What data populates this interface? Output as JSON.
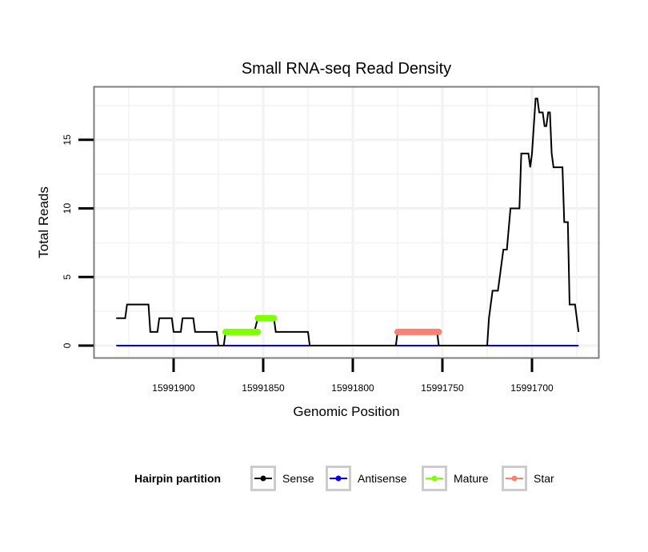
{
  "chart_data": {
    "type": "line",
    "title": "Small RNA-seq Read Density",
    "xlabel": "Genomic Position",
    "ylabel": "Total Reads",
    "x_reversed": true,
    "xlim": [
      15991932,
      15991672
    ],
    "ylim": [
      -0.8,
      18.5
    ],
    "xticks": [
      15991900,
      15991850,
      15991800,
      15991750,
      15991700
    ],
    "xtick_labels": [
      "15991900",
      "15991850",
      "15991800",
      "15991750",
      "15991700"
    ],
    "yticks": [
      0,
      5,
      10,
      15
    ],
    "ytick_labels": [
      "0",
      "5",
      "10",
      "15"
    ],
    "grid": true,
    "legend": {
      "title": "Hairpin partition",
      "position": "bottom",
      "entries": [
        {
          "label": "Sense",
          "color": "#000000"
        },
        {
          "label": "Antisense",
          "color": "#0000FF"
        },
        {
          "label": "Mature",
          "color": "#7FFF00"
        },
        {
          "label": "Star",
          "color": "#FA8072"
        }
      ]
    },
    "series": [
      {
        "name": "Sense",
        "color": "#000000",
        "points": [
          [
            15991932,
            2
          ],
          [
            15991927,
            2
          ],
          [
            15991926,
            3
          ],
          [
            15991914,
            3
          ],
          [
            15991913,
            1
          ],
          [
            15991909,
            1
          ],
          [
            15991908,
            2
          ],
          [
            15991901,
            2
          ],
          [
            15991900,
            1
          ],
          [
            15991896,
            1
          ],
          [
            15991895,
            2
          ],
          [
            15991889,
            2
          ],
          [
            15991888,
            1
          ],
          [
            15991876,
            1
          ],
          [
            15991875,
            0
          ],
          [
            15991872,
            0
          ],
          [
            15991871,
            1
          ],
          [
            15991855,
            1
          ],
          [
            15991853,
            2
          ],
          [
            15991844,
            2
          ],
          [
            15991843,
            1
          ],
          [
            15991825,
            1
          ],
          [
            15991824,
            0
          ],
          [
            15991776,
            0
          ],
          [
            15991775,
            1
          ],
          [
            15991753,
            1
          ],
          [
            15991752,
            0
          ],
          [
            15991725,
            0
          ],
          [
            15991724,
            2
          ],
          [
            15991722,
            4
          ],
          [
            15991719,
            4
          ],
          [
            15991718,
            5
          ],
          [
            15991716,
            7
          ],
          [
            15991714,
            7
          ],
          [
            15991712,
            10
          ],
          [
            15991707,
            10
          ],
          [
            15991706,
            14
          ],
          [
            15991702,
            14
          ],
          [
            15991701,
            13
          ],
          [
            15991700,
            14
          ],
          [
            15991698,
            18
          ],
          [
            15991697,
            18
          ],
          [
            15991696,
            17
          ],
          [
            15991694,
            17
          ],
          [
            15991693,
            16
          ],
          [
            15991692,
            16
          ],
          [
            15991691,
            17
          ],
          [
            15991690,
            17
          ],
          [
            15991689,
            14
          ],
          [
            15991688,
            13
          ],
          [
            15991683,
            13
          ],
          [
            15991682,
            9
          ],
          [
            15991680,
            9
          ],
          [
            15991679,
            3
          ],
          [
            15991676,
            3
          ],
          [
            15991674,
            1
          ]
        ]
      },
      {
        "name": "Antisense",
        "color": "#0000FF",
        "points": [
          [
            15991932,
            0
          ],
          [
            15991674,
            0
          ]
        ]
      },
      {
        "name": "Mature",
        "color": "#7FFF00",
        "segments": [
          {
            "points": [
              [
                15991871,
                1
              ],
              [
                15991853,
                1
              ]
            ]
          },
          {
            "points": [
              [
                15991853,
                2
              ],
              [
                15991844,
                2
              ]
            ]
          }
        ]
      },
      {
        "name": "Star",
        "color": "#FA8072",
        "segments": [
          {
            "points": [
              [
                15991775,
                1
              ],
              [
                15991752,
                1
              ]
            ]
          }
        ]
      }
    ]
  }
}
